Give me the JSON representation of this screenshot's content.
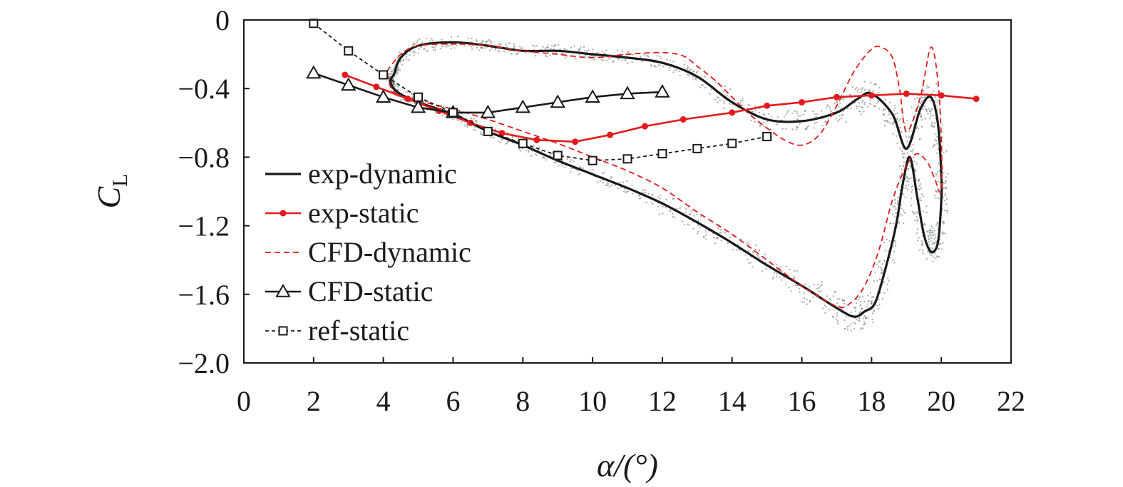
{
  "chart_data": {
    "type": "line",
    "title": "",
    "xlabel": "α/(°)",
    "ylabel": "C",
    "ylabel_sub": "L",
    "xlim": [
      0,
      22
    ],
    "ylim": [
      -2.0,
      0
    ],
    "xticks": [
      0,
      2,
      4,
      6,
      8,
      10,
      12,
      14,
      16,
      18,
      20,
      22
    ],
    "yticks": [
      0,
      -0.4,
      -0.8,
      -1.2,
      -1.6,
      -2.0
    ],
    "xtick_labels": [
      "0",
      "2",
      "4",
      "6",
      "8",
      "10",
      "12",
      "14",
      "16",
      "18",
      "20",
      "22"
    ],
    "ytick_labels": [
      "0",
      "−0.4",
      "−0.8",
      "−1.2",
      "−1.6",
      "−2.0"
    ],
    "grid": false,
    "legend_position": "lower-left",
    "series": [
      {
        "name": "exp-dynamic",
        "style": "solid",
        "color": "#1a1a1a",
        "marker": "none",
        "x": [
          4.3,
          4.5,
          5.0,
          6.0,
          7.0,
          8.0,
          9.0,
          10.0,
          11.0,
          12.0,
          13.0,
          14.0,
          15.0,
          16.0,
          17.0,
          17.6,
          18.0,
          18.6,
          19.0,
          19.4,
          19.7,
          19.9,
          20.0,
          20.0,
          19.9,
          19.7,
          19.5,
          19.3,
          19.1,
          18.9,
          18.7,
          18.4,
          18.1,
          17.8,
          17.5,
          17.0,
          16.0,
          15.0,
          14.0,
          13.0,
          12.0,
          11.0,
          10.0,
          9.0,
          8.0,
          7.0,
          6.0,
          5.0,
          4.4,
          4.2,
          4.3
        ],
        "y": [
          -0.32,
          -0.22,
          -0.15,
          -0.13,
          -0.15,
          -0.18,
          -0.18,
          -0.2,
          -0.22,
          -0.25,
          -0.33,
          -0.48,
          -0.58,
          -0.59,
          -0.54,
          -0.46,
          -0.43,
          -0.55,
          -0.75,
          -0.52,
          -0.45,
          -0.6,
          -0.9,
          -1.05,
          -1.3,
          -1.35,
          -1.25,
          -1.02,
          -0.8,
          -0.95,
          -1.2,
          -1.45,
          -1.65,
          -1.7,
          -1.73,
          -1.68,
          -1.55,
          -1.43,
          -1.3,
          -1.18,
          -1.07,
          -0.98,
          -0.9,
          -0.82,
          -0.73,
          -0.65,
          -0.55,
          -0.48,
          -0.42,
          -0.36,
          -0.32
        ]
      },
      {
        "name": "exp-static",
        "style": "solid",
        "color": "#e31a1c",
        "marker": "circle",
        "x": [
          2.9,
          3.8,
          4.7,
          5.6,
          6.5,
          7.4,
          8.4,
          9.5,
          10.5,
          11.5,
          12.6,
          14.0,
          15.0,
          16.0,
          17.0,
          18.0,
          19.0,
          20.0,
          21.0
        ],
        "y": [
          -0.32,
          -0.39,
          -0.46,
          -0.53,
          -0.6,
          -0.66,
          -0.7,
          -0.71,
          -0.67,
          -0.62,
          -0.58,
          -0.54,
          -0.5,
          -0.48,
          -0.45,
          -0.44,
          -0.43,
          -0.44,
          -0.46
        ]
      },
      {
        "name": "CFD-dynamic",
        "style": "dashed",
        "color": "#e31a1c",
        "marker": "none",
        "x": [
          4.1,
          4.5,
          5.0,
          6.0,
          7.0,
          8.0,
          9.0,
          10.0,
          11.0,
          12.0,
          12.6,
          13.0,
          13.5,
          14.0,
          14.5,
          15.0,
          15.5,
          16.0,
          16.5,
          17.0,
          17.5,
          18.0,
          18.3,
          18.6,
          18.8,
          19.0,
          19.4,
          19.7,
          19.9,
          20.0,
          20.0,
          19.8,
          19.6,
          19.3,
          19.0,
          18.6,
          18.2,
          17.8,
          17.4,
          17.0,
          16.0,
          15.0,
          14.0,
          13.0,
          12.0,
          11.0,
          10.0,
          9.0,
          8.0,
          7.0,
          6.0,
          5.0,
          4.3,
          4.1
        ],
        "y": [
          -0.3,
          -0.2,
          -0.15,
          -0.14,
          -0.15,
          -0.18,
          -0.2,
          -0.22,
          -0.2,
          -0.19,
          -0.21,
          -0.27,
          -0.35,
          -0.45,
          -0.55,
          -0.63,
          -0.7,
          -0.73,
          -0.67,
          -0.5,
          -0.3,
          -0.17,
          -0.16,
          -0.22,
          -0.4,
          -0.65,
          -0.45,
          -0.16,
          -0.35,
          -0.7,
          -1.0,
          -0.92,
          -0.83,
          -0.78,
          -0.85,
          -1.05,
          -1.35,
          -1.55,
          -1.65,
          -1.67,
          -1.55,
          -1.4,
          -1.25,
          -1.12,
          -0.98,
          -0.88,
          -0.8,
          -0.72,
          -0.65,
          -0.58,
          -0.52,
          -0.47,
          -0.42,
          -0.3
        ]
      },
      {
        "name": "CFD-static",
        "style": "solid",
        "color": "#1a1a1a",
        "marker": "triangle",
        "x": [
          2,
          3,
          4,
          5,
          6,
          7,
          8,
          9,
          10,
          11,
          12
        ],
        "y": [
          -0.31,
          -0.38,
          -0.45,
          -0.51,
          -0.54,
          -0.54,
          -0.51,
          -0.48,
          -0.45,
          -0.43,
          -0.42
        ]
      },
      {
        "name": "ref-static",
        "style": "dashed",
        "color": "#1a1a1a",
        "marker": "square",
        "x": [
          2,
          3,
          4,
          5,
          6,
          7,
          8,
          9,
          10,
          11,
          12,
          13,
          14,
          15
        ],
        "y": [
          -0.02,
          -0.18,
          -0.32,
          -0.45,
          -0.54,
          -0.65,
          -0.72,
          -0.79,
          -0.82,
          -0.81,
          -0.78,
          -0.75,
          -0.72,
          -0.68
        ]
      }
    ],
    "colors": {
      "scatter_cloud": "#7f9183",
      "exp_static": "#e31a1c",
      "black": "#1a1a1a"
    }
  }
}
